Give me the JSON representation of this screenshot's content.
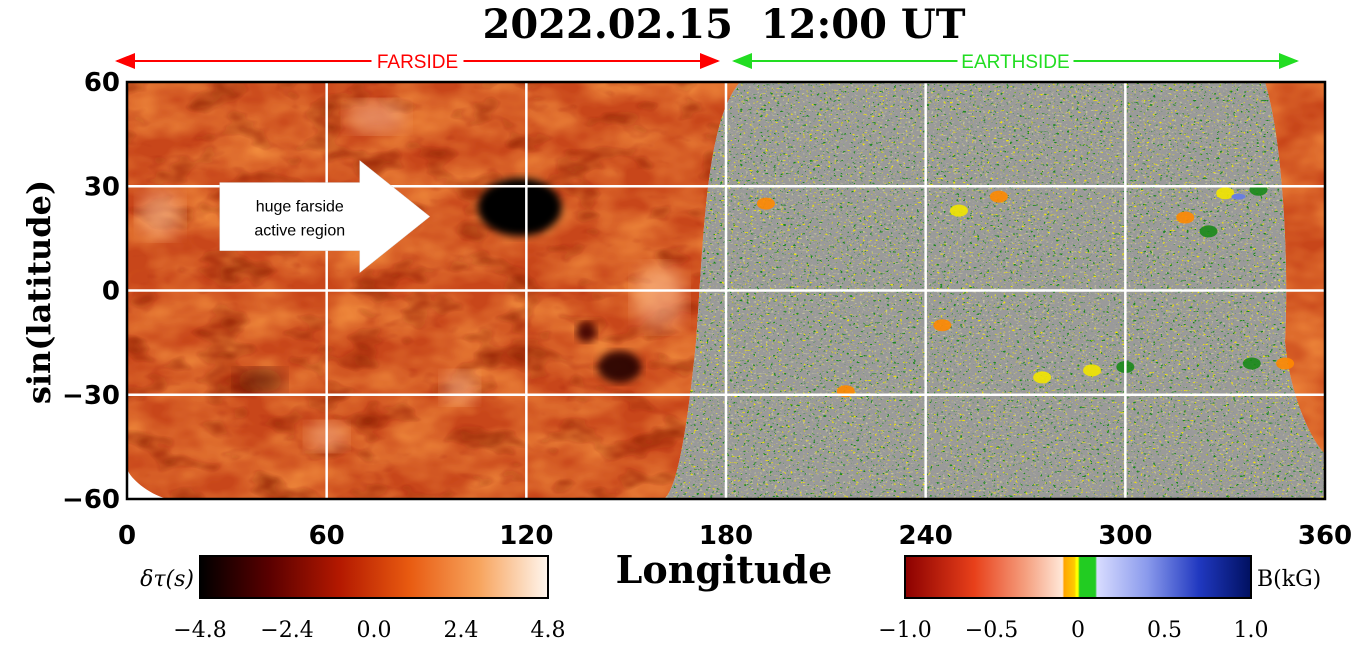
{
  "chart_data": {
    "type": "heatmap",
    "title": "2022.02.15  12:00 UT",
    "xlabel": "Longitude",
    "ylabel": "sin(latitude)",
    "xlim": [
      0,
      360
    ],
    "ylim": [
      -60,
      60
    ],
    "xticks": [
      0,
      60,
      120,
      180,
      240,
      300,
      360
    ],
    "xtick_labels": [
      "0",
      "60",
      "120",
      "180",
      "240",
      "300",
      "360"
    ],
    "yticks": [
      60,
      30,
      0,
      -30,
      -60
    ],
    "ytick_labels": [
      "60",
      "30",
      "0",
      "−30",
      "−60"
    ],
    "grid": true,
    "regions": [
      {
        "name": "FARSIDE",
        "from": 0,
        "to": 180,
        "color": "#ff0000"
      },
      {
        "name": "EARTHSIDE",
        "from": 180,
        "to": 360,
        "color": "#22dd22"
      }
    ],
    "annotation": {
      "line1": "huge farside",
      "line2": "active region",
      "x": 100,
      "y": 23
    },
    "colorbars": [
      {
        "label": "δτ(s)",
        "ticks": [
          -4.8,
          -2.4,
          0.0,
          2.4,
          4.8
        ],
        "tick_labels": [
          "−4.8",
          "−2.4",
          "0.0",
          "2.4",
          "4.8"
        ],
        "range": [
          -4.8,
          4.8
        ],
        "colors": [
          "#000000",
          "#5a0000",
          "#b31800",
          "#e85a10",
          "#f7a35c",
          "#fff6ee"
        ]
      },
      {
        "label": "B(kG)",
        "ticks": [
          -1.0,
          -0.5,
          0,
          0.5,
          1.0
        ],
        "tick_labels": [
          "−1.0",
          "−0.5",
          "0",
          "0.5",
          "1.0"
        ],
        "range": [
          -1.0,
          1.0
        ],
        "colors": [
          "#8b0000",
          "#e8401a",
          "#f5a080",
          "#ffe0cc",
          "#ffa500",
          "#ffff00",
          "#22cc22",
          "#c8ccff",
          "#6a7fe0",
          "#0018a0",
          "#001060"
        ]
      }
    ]
  }
}
